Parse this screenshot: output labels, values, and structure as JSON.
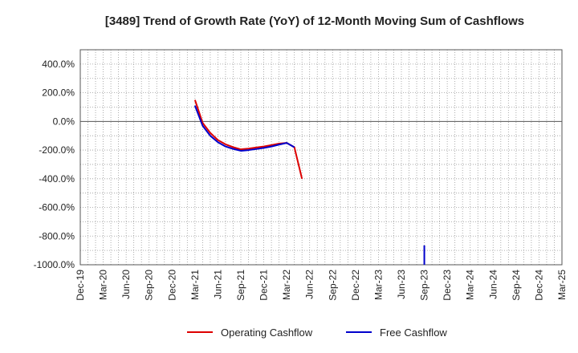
{
  "chart_data": {
    "type": "line",
    "title": "[3489]  Trend of Growth Rate (YoY) of 12-Month Moving Sum of Cashflows",
    "xlabel": "",
    "ylabel": "",
    "ylim": [
      -1000,
      500
    ],
    "y_ticks": [
      400,
      200,
      0,
      -200,
      -400,
      -600,
      -800,
      -1000
    ],
    "y_tick_labels": [
      "400.0%",
      "200.0%",
      "0.0%",
      "-200.0%",
      "-400.0%",
      "-600.0%",
      "-800.0%",
      "-1000.0%"
    ],
    "x_tick_labels": [
      "Dec-19",
      "Mar-20",
      "Jun-20",
      "Sep-20",
      "Dec-20",
      "Mar-21",
      "Jun-21",
      "Sep-21",
      "Dec-21",
      "Mar-22",
      "Jun-22",
      "Sep-22",
      "Dec-22",
      "Mar-23",
      "Jun-23",
      "Sep-23",
      "Dec-23",
      "Mar-24",
      "Jun-24",
      "Sep-24",
      "Dec-24",
      "Mar-25"
    ],
    "grid": true,
    "legend_position": "bottom",
    "series": [
      {
        "name": "Operating Cashflow",
        "color": "#dd0000",
        "x": [
          "Mar-21",
          "Apr-21",
          "May-21",
          "Jun-21",
          "Jul-21",
          "Aug-21",
          "Sep-21",
          "Oct-21",
          "Nov-21",
          "Dec-21",
          "Jan-22",
          "Feb-22",
          "Mar-22",
          "Apr-22",
          "May-22"
        ],
        "values": [
          150,
          -10,
          -80,
          -130,
          -160,
          -180,
          -195,
          -190,
          -182,
          -175,
          -165,
          -155,
          -150,
          -180,
          -400
        ]
      },
      {
        "name": "Free Cashflow",
        "color": "#0000cc",
        "x": [
          "Mar-21",
          "Apr-21",
          "May-21",
          "Jun-21",
          "Jul-21",
          "Aug-21",
          "Sep-21",
          "Oct-21",
          "Nov-21",
          "Dec-21",
          "Jan-22",
          "Feb-22",
          "Mar-22",
          "Apr-22",
          "Sep-23",
          "Sep-23"
        ],
        "values": [
          110,
          -30,
          -100,
          -145,
          -175,
          -192,
          -205,
          -200,
          -193,
          -185,
          -175,
          -162,
          -150,
          -180,
          -865,
          -1000
        ]
      }
    ]
  }
}
